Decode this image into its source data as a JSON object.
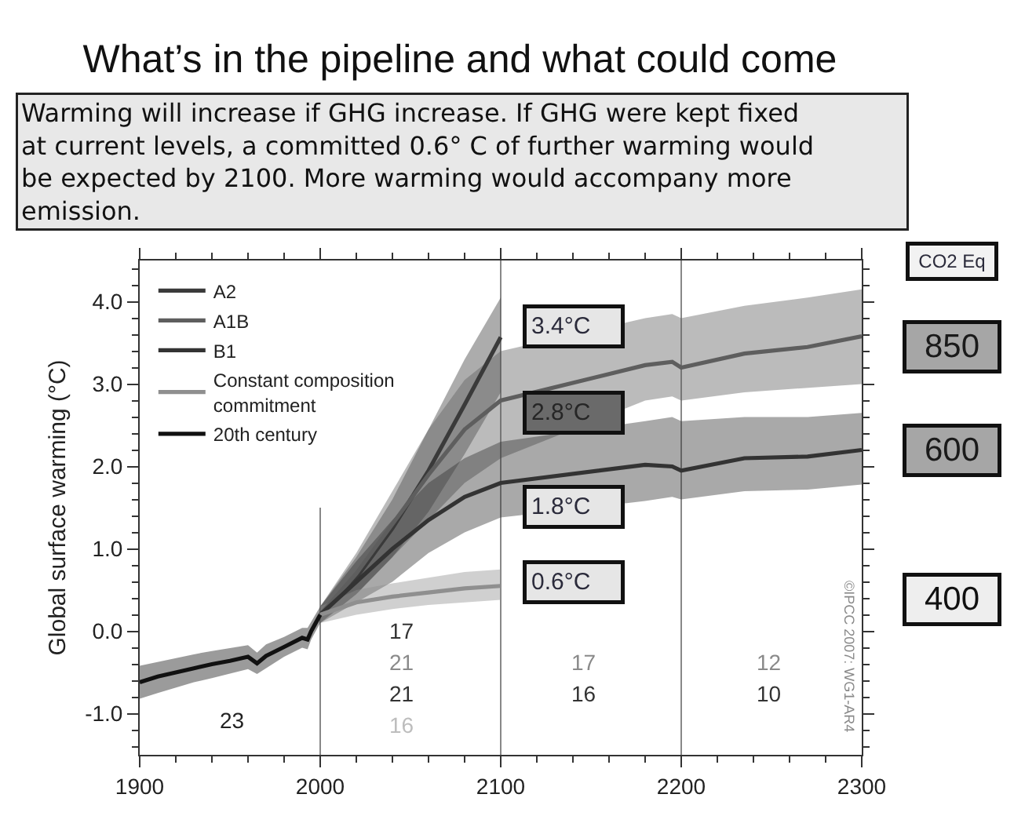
{
  "chart_data": {
    "type": "line",
    "title": "What’s in the pipeline and what could come",
    "subtitle": "Warming will increase if GHG increase. If GHG were kept fixed at current levels, a committed 0.6° C of further warming would be expected by 2100. More warming would accompany more emission.",
    "ylabel": "Global surface warming (°C)",
    "xlim": [
      1900,
      2300
    ],
    "xticks": [
      1900,
      {
        "value": 1920,
        "label": null
      },
      {
        "value": 1940,
        "label": null
      },
      {
        "value": 1960,
        "label": null
      },
      {
        "value": 1980,
        "label": null
      },
      2000,
      {
        "value": 2020,
        "label": null
      },
      {
        "value": 2040,
        "label": null
      },
      {
        "value": 2060,
        "label": null
      },
      {
        "value": 2080,
        "label": null
      },
      2100,
      {
        "value": 2120,
        "label": null
      },
      {
        "value": 2140,
        "label": null
      },
      {
        "value": 2160,
        "label": null
      },
      {
        "value": 2180,
        "label": null
      },
      2200,
      {
        "value": 2220,
        "label": null
      },
      {
        "value": 2240,
        "label": null
      },
      {
        "value": 2260,
        "label": null
      },
      {
        "value": 2280,
        "label": null
      },
      2300
    ],
    "ylim": [
      -1.5,
      4.5
    ],
    "yticks": [
      {
        "value": -1.4,
        "label": null
      },
      {
        "value": -1.2,
        "label": null
      },
      {
        "value": -1,
        "label": "-1.0"
      },
      {
        "value": -0.8,
        "label": null
      },
      {
        "value": -0.6,
        "label": null
      },
      {
        "value": -0.4,
        "label": null
      },
      {
        "value": -0.2,
        "label": null
      },
      {
        "value": 0,
        "label": "0.0"
      },
      {
        "value": 0.2,
        "label": null
      },
      {
        "value": 0.4,
        "label": null
      },
      {
        "value": 0.6,
        "label": null
      },
      {
        "value": 0.8,
        "label": null
      },
      {
        "value": 1,
        "label": "1.0"
      },
      {
        "value": 1.2,
        "label": null
      },
      {
        "value": 1.4,
        "label": null
      },
      {
        "value": 1.6,
        "label": null
      },
      {
        "value": 1.8,
        "label": null
      },
      {
        "value": 2,
        "label": "2.0"
      },
      {
        "value": 2.2,
        "label": null
      },
      {
        "value": 2.4,
        "label": null
      },
      {
        "value": 2.6,
        "label": null
      },
      {
        "value": 2.8,
        "label": null
      },
      {
        "value": 3,
        "label": "3.0"
      },
      {
        "value": 3.2,
        "label": null
      },
      {
        "value": 3.4,
        "label": null
      },
      {
        "value": 3.6,
        "label": null
      },
      {
        "value": 3.8,
        "label": null
      },
      {
        "value": 4,
        "label": "4.0"
      },
      {
        "value": 4.2,
        "label": null
      },
      {
        "value": 4.4,
        "label": null
      }
    ],
    "series": [
      {
        "name": "A2",
        "color": "#3a3a3a",
        "x": [
          2000,
          2020,
          2040,
          2060,
          2080,
          2100
        ],
        "values": [
          0.2,
          0.65,
          1.25,
          1.95,
          2.75,
          3.57
        ],
        "lower": [
          0.1,
          0.45,
          0.9,
          1.45,
          2.15,
          2.9
        ],
        "upper": [
          0.3,
          0.9,
          1.6,
          2.45,
          3.3,
          4.05
        ]
      },
      {
        "name": "A1B",
        "color": "#5e5e5e",
        "x": [
          2000,
          2020,
          2040,
          2060,
          2080,
          2100,
          2180,
          2195,
          2200,
          2235,
          2270,
          2300
        ],
        "values": [
          0.2,
          0.7,
          1.3,
          1.9,
          2.45,
          2.8,
          3.23,
          3.27,
          3.2,
          3.37,
          3.45,
          3.58
        ],
        "lower": [
          0.1,
          0.45,
          0.9,
          1.35,
          1.8,
          2.1,
          2.8,
          2.85,
          2.8,
          2.9,
          2.95,
          3.0
        ],
        "upper": [
          0.3,
          0.95,
          1.7,
          2.45,
          3.05,
          3.4,
          3.8,
          3.85,
          3.8,
          3.95,
          4.05,
          4.15
        ]
      },
      {
        "name": "B1",
        "color": "#333333",
        "x": [
          2000,
          2020,
          2040,
          2060,
          2080,
          2100,
          2180,
          2195,
          2200,
          2235,
          2270,
          2300
        ],
        "values": [
          0.2,
          0.6,
          1.0,
          1.35,
          1.63,
          1.8,
          2.02,
          2.0,
          1.95,
          2.1,
          2.12,
          2.2
        ],
        "lower": [
          0.1,
          0.35,
          0.6,
          0.95,
          1.2,
          1.38,
          1.58,
          1.63,
          1.6,
          1.7,
          1.72,
          1.78
        ],
        "upper": [
          0.3,
          0.85,
          1.35,
          1.8,
          2.1,
          2.3,
          2.55,
          2.6,
          2.55,
          2.6,
          2.6,
          2.65
        ]
      },
      {
        "name": "Constant composition commitment",
        "color": "#8f8f8f",
        "x": [
          2000,
          2020,
          2040,
          2060,
          2080,
          2100
        ],
        "values": [
          0.2,
          0.35,
          0.42,
          0.47,
          0.52,
          0.55
        ],
        "lower": [
          0.1,
          0.2,
          0.27,
          0.32,
          0.35,
          0.38
        ],
        "upper": [
          0.3,
          0.5,
          0.58,
          0.65,
          0.72,
          0.75
        ]
      },
      {
        "name": "20th century",
        "color": "#111111",
        "x": [
          1900,
          1910,
          1920,
          1930,
          1940,
          1950,
          1960,
          1965,
          1970,
          1980,
          1990,
          1993,
          1995,
          2000
        ],
        "values": [
          -0.62,
          -0.55,
          -0.5,
          -0.45,
          -0.4,
          -0.36,
          -0.31,
          -0.39,
          -0.3,
          -0.19,
          -0.08,
          -0.1,
          0.0,
          0.2
        ],
        "lower": [
          -0.82,
          -0.75,
          -0.68,
          -0.62,
          -0.57,
          -0.52,
          -0.46,
          -0.52,
          -0.44,
          -0.31,
          -0.2,
          -0.22,
          -0.1,
          0.1
        ],
        "upper": [
          -0.42,
          -0.37,
          -0.32,
          -0.28,
          -0.24,
          -0.2,
          -0.17,
          -0.26,
          -0.16,
          -0.07,
          0.04,
          0.04,
          0.12,
          0.3
        ]
      }
    ],
    "ref_lines": [
      {
        "axis": "x",
        "value": 2000,
        "color": "#888888"
      },
      {
        "axis": "x",
        "value": 2100,
        "color": "#888888"
      },
      {
        "axis": "x",
        "value": 2200,
        "color": "#888888"
      }
    ],
    "legend": "top left",
    "annotations": [
      "3.4°C",
      "2.8°C",
      "1.8°C",
      "0.6°C",
      "23",
      "17",
      "21",
      "21",
      "16",
      "17",
      "16",
      "12",
      "10",
      "©IPCC 2007: WG1-AR4",
      "CO2 Eq",
      "850",
      "600",
      "400"
    ]
  }
}
